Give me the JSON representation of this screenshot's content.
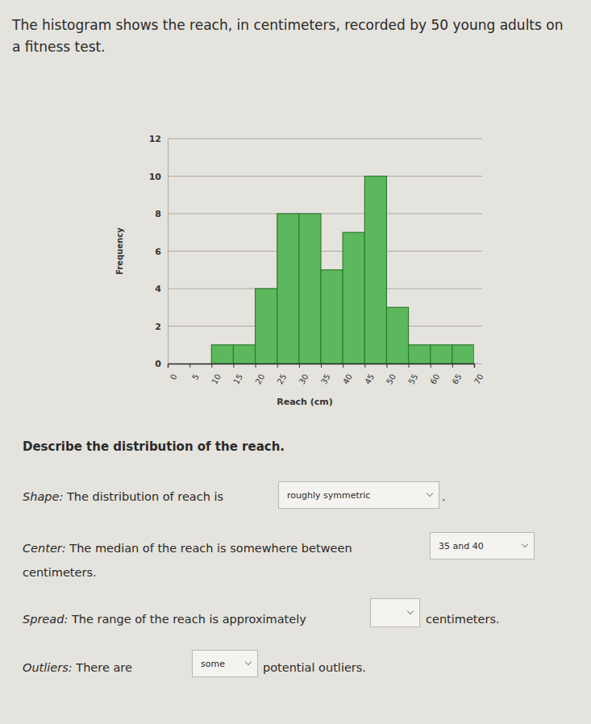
{
  "chart_data": {
    "type": "histogram",
    "bins": [
      0,
      5,
      10,
      15,
      20,
      25,
      30,
      35,
      40,
      45,
      50,
      55,
      60,
      65,
      70
    ],
    "values": [
      0,
      0,
      1,
      1,
      4,
      8,
      8,
      5,
      7,
      10,
      3,
      1,
      1,
      1
    ],
    "color": "#5cb85c",
    "xlabel": "Reach (cm)",
    "ylabel": "Frequency",
    "xlim": [
      0,
      70
    ],
    "xticks": [
      0,
      5,
      10,
      15,
      20,
      25,
      30,
      35,
      40,
      45,
      50,
      55,
      60,
      65,
      70
    ],
    "ylim": [
      0,
      12
    ],
    "yticks": [
      0,
      2,
      4,
      6,
      8,
      10,
      12
    ],
    "grid": true
  },
  "page": {
    "intro": "The histogram shows the reach, in centimeters, recorded by 50 young adults on a fitness test.",
    "prompt": "Describe the distribution of the reach.",
    "questions": [
      {
        "label": "Shape:",
        "before": "The distribution of reach is",
        "answer": "roughly symmetric",
        "after": "."
      },
      {
        "label": "Center:",
        "before": "The median of the reach is somewhere between",
        "answer": "35 and 40",
        "after": "centimeters."
      },
      {
        "label": "Spread:",
        "before": "The range of the reach is approximately",
        "after": "centimeters."
      },
      {
        "label": "Outliers:",
        "before": "There are",
        "answer": "some",
        "after": "potential outliers."
      }
    ]
  }
}
